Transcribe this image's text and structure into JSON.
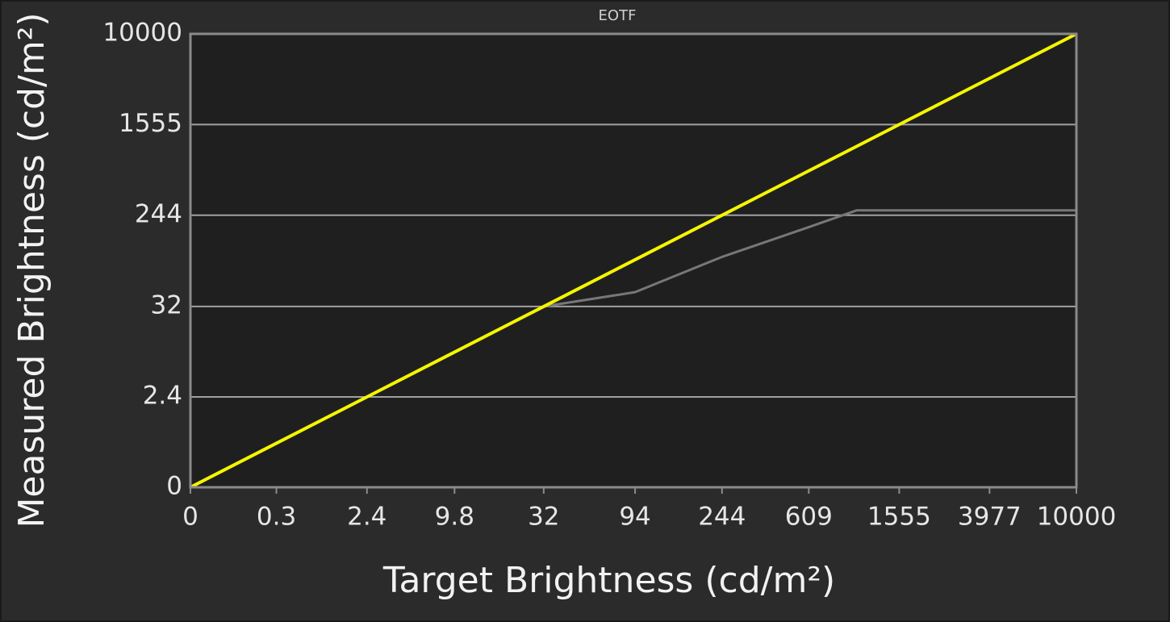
{
  "chart_data": {
    "type": "line",
    "title": "EOTF",
    "x_label": "Target Brightness (cd/m²)",
    "y_label": "Measured Brightness (cd/m²)",
    "x": [
      0,
      0.3,
      2.4,
      9.8,
      32,
      94,
      244,
      609,
      1000,
      1555,
      3977,
      10000
    ],
    "series": [
      {
        "color": "#f5f500",
        "values": [
          0,
          0.3,
          2.4,
          9.8,
          32,
          94,
          244,
          609,
          1000,
          1555,
          3977,
          10000
        ]
      },
      {
        "color": "#777777",
        "values": [
          0,
          0.3,
          2.4,
          9.8,
          32,
          45,
          100,
          190,
          270,
          270,
          270,
          270
        ]
      }
    ],
    "scale": "pq",
    "xlim": [
      0,
      10000
    ],
    "xticks": [
      0,
      0.3,
      2.4,
      9.8,
      32,
      94,
      244,
      609,
      1555,
      3977,
      10000
    ],
    "ylim": [
      0,
      10000
    ],
    "yticks": [
      0,
      2.4,
      32,
      244,
      1555,
      10000
    ],
    "grid": true
  }
}
